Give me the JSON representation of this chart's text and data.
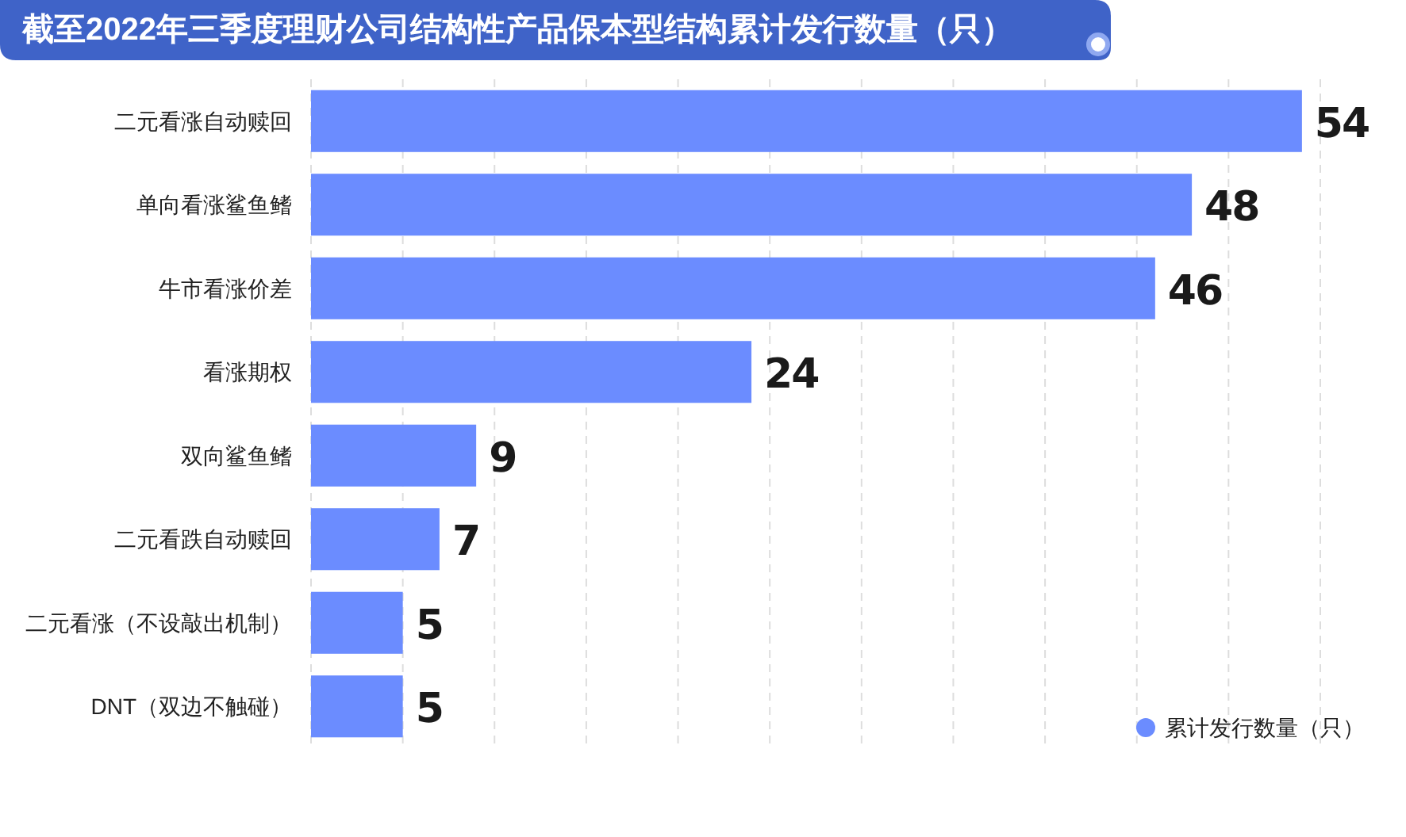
{
  "chart_data": {
    "type": "bar",
    "orientation": "horizontal",
    "title": "截至2022年三季度理财公司结构性产品保本型结构累计发行数量（只）",
    "categories": [
      "二元看涨自动赎回",
      "单向看涨鲨鱼鳍",
      "牛市看涨价差",
      "看涨期权",
      "双向鲨鱼鳍",
      "二元看跌自动赎回",
      "二元看涨（不设敲出机制）",
      "DNT（双边不触碰）"
    ],
    "series": [
      {
        "name": "累计发行数量（只）",
        "color": "#6b8cff",
        "values": [
          54,
          48,
          46,
          24,
          9,
          7,
          5,
          5
        ]
      }
    ],
    "xlim": [
      0,
      55
    ],
    "xticks": [
      {
        "value": 0,
        "label": null
      },
      {
        "value": 5,
        "label": null
      },
      {
        "value": 10,
        "label": null
      },
      {
        "value": 15,
        "label": null
      },
      {
        "value": 20,
        "label": null
      },
      {
        "value": 25,
        "label": null
      },
      {
        "value": 30,
        "label": null
      },
      {
        "value": 35,
        "label": null
      },
      {
        "value": 40,
        "label": null
      },
      {
        "value": 45,
        "label": null
      },
      {
        "value": 50,
        "label": null
      },
      {
        "value": 55,
        "label": null
      }
    ],
    "tick_labels": "y",
    "grid": "x",
    "legend": "bottom right",
    "data_labels": true
  }
}
